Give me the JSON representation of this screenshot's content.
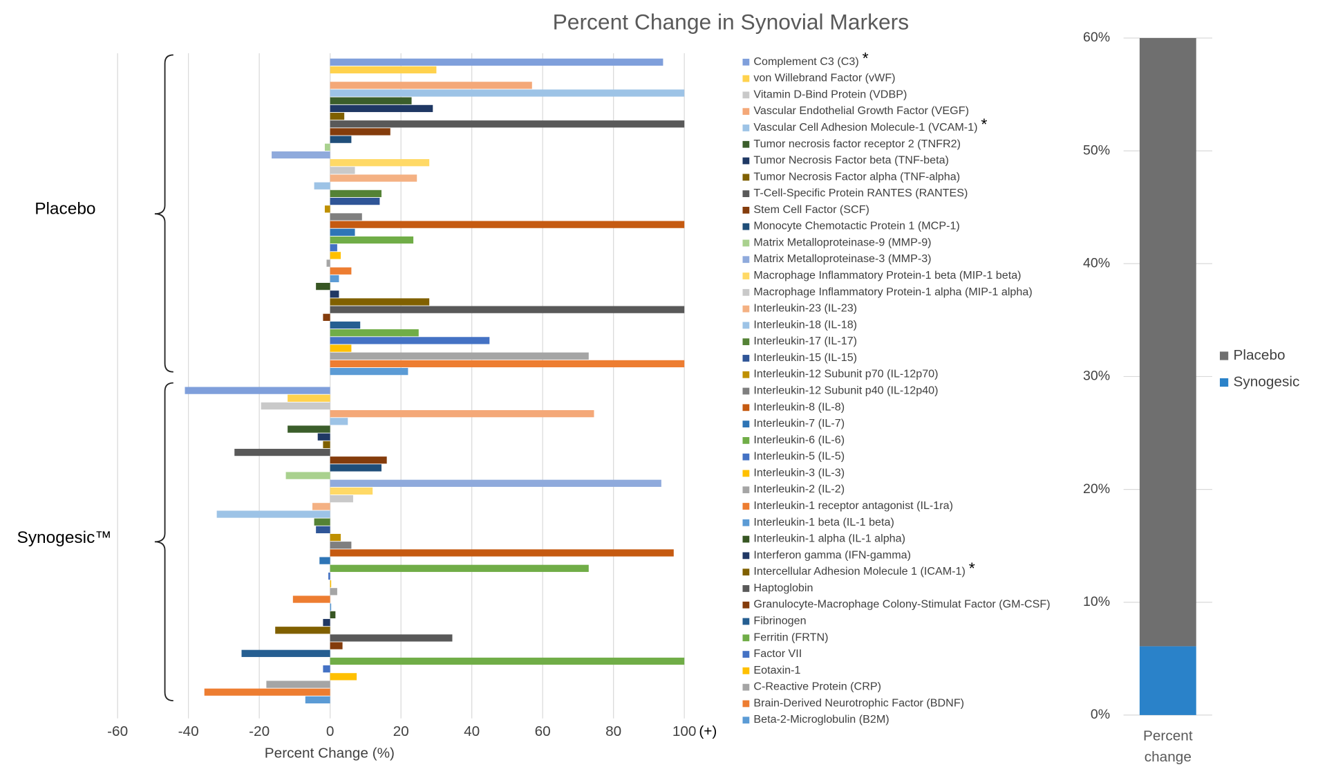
{
  "chart_data": [
    {
      "type": "hbar-grouped",
      "title": "Percent Change in Synovial Markers",
      "x_label": "Percent Change (%)",
      "x_annotation": "(+)",
      "xlim": [
        -60,
        100
      ],
      "xticks": [
        -60,
        -40,
        -20,
        0,
        20,
        40,
        60,
        80,
        100
      ],
      "grid": true,
      "categories": [
        "Complement C3 (C3)",
        "von Willebrand Factor (vWF)",
        "Vitamin D-Bind Protein (VDBP)",
        "Vascular Endothelial Growth Factor (VEGF)",
        "Vascular Cell Adhesion Molecule-1 (VCAM-1)",
        "Tumor necrosis factor receptor 2 (TNFR2)",
        "Tumor Necrosis Factor beta (TNF-beta)",
        "Tumor Necrosis Factor alpha (TNF-alpha)",
        "T-Cell-Specific Protein RANTES (RANTES)",
        "Stem Cell Factor (SCF)",
        "Monocyte Chemotactic Protein 1 (MCP-1)",
        "Matrix Metalloproteinase-9 (MMP-9)",
        "Matrix Metalloproteinase-3 (MMP-3)",
        "Macrophage Inflammatory Protein-1 beta (MIP-1 beta)",
        "Macrophage Inflammatory Protein-1 alpha (MIP-1 alpha)",
        "Interleukin-23 (IL-23)",
        "Interleukin-18 (IL-18)",
        "Interleukin-17 (IL-17)",
        "Interleukin-15 (IL-15)",
        "Interleukin-12 Subunit p70 (IL-12p70)",
        "Interleukin-12 Subunit p40 (IL-12p40)",
        "Interleukin-8 (IL-8)",
        "Interleukin-7 (IL-7)",
        "Interleukin-6 (IL-6)",
        "Interleukin-5 (IL-5)",
        "Interleukin-3 (IL-3)",
        "Interleukin-2 (IL-2)",
        "Interleukin-1 receptor antagonist (IL-1ra)",
        "Interleukin-1 beta (IL-1 beta)",
        "Interleukin-1 alpha (IL-1 alpha)",
        "Interferon gamma (IFN-gamma)",
        "Intercellular Adhesion Molecule 1 (ICAM-1)",
        "Haptoglobin",
        "Granulocyte-Macrophage Colony-Stimulat Factor (GM-CSF)",
        "Fibrinogen",
        "Ferritin (FRTN)",
        "Factor VII",
        "Eotaxin-1",
        "C-Reactive Protein (CRP)",
        "Brain-Derived Neurotrophic Factor (BDNF)",
        "Beta-2-Microglobulin (B2M)"
      ],
      "significance": [
        "*",
        null,
        null,
        null,
        "*",
        null,
        null,
        null,
        null,
        null,
        null,
        null,
        null,
        null,
        null,
        null,
        null,
        null,
        null,
        null,
        null,
        null,
        null,
        null,
        null,
        null,
        null,
        null,
        null,
        null,
        null,
        "*",
        null,
        null,
        null,
        null,
        null,
        null,
        null,
        null,
        null
      ],
      "colors": [
        "#7f9fdb",
        "#ffd24d",
        "#c9c9c9",
        "#f4a878",
        "#9dc3e6",
        "#3b5e2b",
        "#1f3864",
        "#7f6000",
        "#595959",
        "#843c0c",
        "#1f4e79",
        "#a9d18e",
        "#8faadc",
        "#ffd966",
        "#c9c9c9",
        "#f4b183",
        "#9dc3e6",
        "#548235",
        "#2f5597",
        "#bf9000",
        "#7f7f7f",
        "#c55a11",
        "#2e75b6",
        "#70ad47",
        "#4472c4",
        "#ffc000",
        "#a5a5a5",
        "#ed7d31",
        "#5b9bd5",
        "#375623",
        "#203864",
        "#806000",
        "#595959",
        "#843c0c",
        "#255e91",
        "#70ad47",
        "#4472c4",
        "#ffc000",
        "#a5a5a5",
        "#ed7d31",
        "#5b9bd5"
      ],
      "series": [
        {
          "name": "Placebo",
          "values": [
            94,
            30,
            0,
            57,
            100,
            23,
            29,
            4,
            100,
            17,
            6,
            -1.5,
            -16.5,
            28,
            7,
            24.5,
            -4.5,
            14.5,
            14,
            -1.5,
            9,
            100,
            7,
            23.5,
            2,
            3,
            -1,
            6,
            2.5,
            -4,
            2.5,
            28,
            100,
            -2,
            8.5,
            25,
            45,
            6,
            73,
            100,
            22
          ]
        },
        {
          "name": "Synogesic™",
          "values": [
            -41,
            -12,
            -19.5,
            74.5,
            5,
            -12,
            -3.5,
            -2,
            -27,
            16,
            14.5,
            -12.5,
            93.5,
            12,
            6.5,
            -5,
            -32,
            -4.5,
            -4,
            3,
            6,
            97,
            -3,
            73,
            -0.5,
            0.3,
            2,
            -10.5,
            0.3,
            1.5,
            -2,
            -15.5,
            34.5,
            3.5,
            -25,
            100,
            -2,
            7.5,
            -18,
            -35.5,
            -7
          ]
        }
      ]
    },
    {
      "type": "stacked-bar",
      "categories": [
        "Percent change"
      ],
      "ylim": [
        0,
        60
      ],
      "yticks": [
        {
          "value": 0,
          "label": "0%"
        },
        {
          "value": 10,
          "label": "10%"
        },
        {
          "value": 20,
          "label": "20%"
        },
        {
          "value": 30,
          "label": "30%"
        },
        {
          "value": 40,
          "label": "40%"
        },
        {
          "value": 50,
          "label": "50%"
        },
        {
          "value": 60,
          "label": "60%"
        }
      ],
      "grid": true,
      "series": [
        {
          "name": "Synogesic",
          "color": "#2a82c9",
          "values": [
            6.1
          ]
        },
        {
          "name": "Placebo",
          "color": "#6f6f6f",
          "values": [
            53.9
          ]
        }
      ]
    }
  ]
}
